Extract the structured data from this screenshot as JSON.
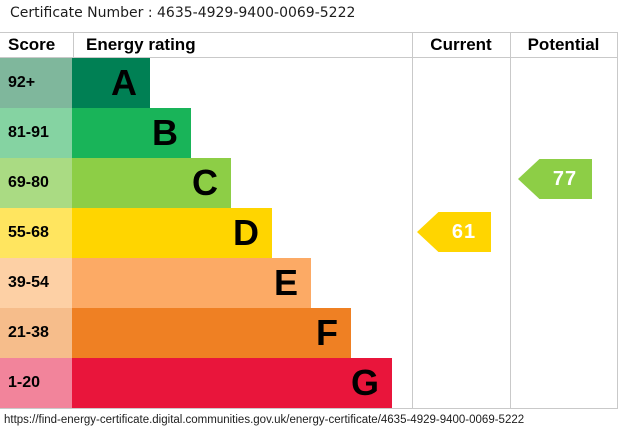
{
  "header": {
    "certificate_label": "Certificate Number : 4635-4929-9400-0069-5222"
  },
  "table": {
    "columns": {
      "score": "Score",
      "energy_rating": "Energy rating",
      "current": "Current",
      "potential": "Potential"
    }
  },
  "chart_data": {
    "type": "bar",
    "title": "Energy efficiency rating chart (EPC)",
    "bands": [
      {
        "letter": "A",
        "score_range": "92+",
        "color": "#008054",
        "score_bg": "#7fb79c"
      },
      {
        "letter": "B",
        "score_range": "81-91",
        "color": "#19b459",
        "score_bg": "#85d3a2"
      },
      {
        "letter": "C",
        "score_range": "69-80",
        "color": "#8dce46",
        "score_bg": "#aadb83"
      },
      {
        "letter": "D",
        "score_range": "55-68",
        "color": "#ffd500",
        "score_bg": "#ffe55f"
      },
      {
        "letter": "E",
        "score_range": "39-54",
        "color": "#fcaa65",
        "score_bg": "#fdd0a5"
      },
      {
        "letter": "F",
        "score_range": "21-38",
        "color": "#ef8023",
        "score_bg": "#f6bd8b"
      },
      {
        "letter": "G",
        "score_range": "1-20",
        "color": "#e9153b",
        "score_bg": "#f2849b"
      }
    ],
    "current": {
      "value": 61,
      "band": "D",
      "color": "#ffd500"
    },
    "potential": {
      "value": 77,
      "band": "C",
      "color": "#8dce46"
    }
  },
  "footer": {
    "url": "https://find-energy-certificate.digital.communities.gov.uk/energy-certificate/4635-4929-9400-0069-5222"
  }
}
